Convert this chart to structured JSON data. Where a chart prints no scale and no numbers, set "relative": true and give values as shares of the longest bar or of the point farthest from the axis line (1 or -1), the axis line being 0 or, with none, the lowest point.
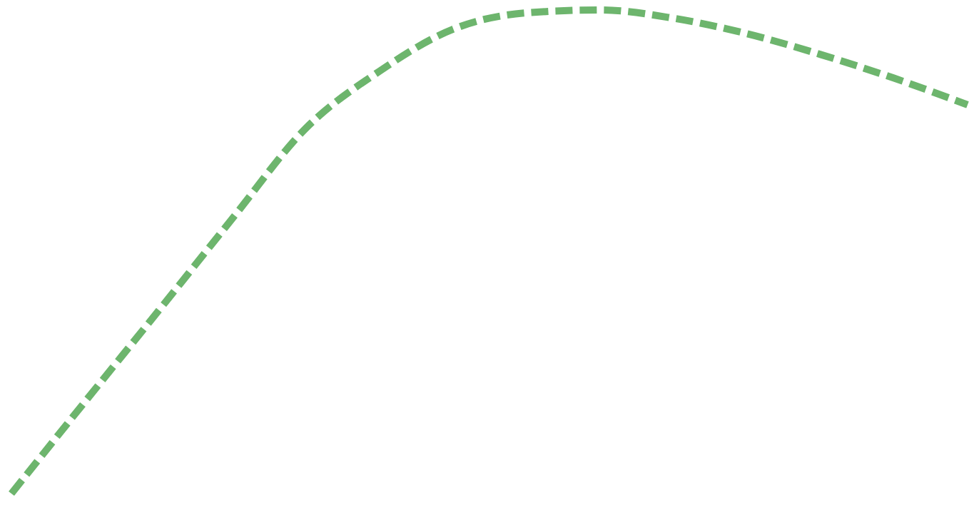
{
  "chart_data": {
    "type": "line",
    "relative": true,
    "categories": [
      null,
      null,
      null,
      null,
      null,
      null,
      null,
      null,
      null,
      null,
      null,
      null,
      null,
      null
    ],
    "series": [
      {
        "color": "#6db56d",
        "values": [
          0,
          0.19,
          0.378,
          0.568,
          0.755,
          0.873,
          0.96,
          0.994,
          1.0,
          0.983,
          0.951,
          0.908,
          0.859,
          0.804
        ]
      }
    ],
    "line_style": "dashed",
    "marker": "none",
    "grid": false,
    "tick_labels": false
  }
}
